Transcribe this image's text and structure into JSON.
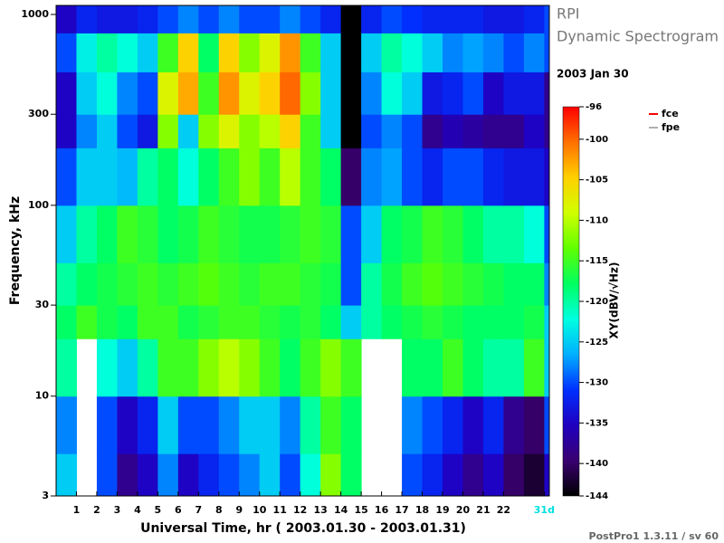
{
  "chart_data": {
    "type": "heatmap",
    "title": "RPI",
    "subtitle": "Dynamic Spectrogram",
    "date": "2003 Jan 30",
    "xlabel": "Universal Time, hr ( 2003.01.30 - 2003.01.31)",
    "ylabel": "Frequency, kHz",
    "colorbar_label": "XY(dBV/√Hz)",
    "footer": "PostPro1 1.3.11 / sv 60",
    "xlim": [
      0,
      24.25
    ],
    "ylim": [
      3,
      1115
    ],
    "log_y": true,
    "xticks": [
      1,
      2,
      3,
      4,
      5,
      6,
      7,
      8,
      9,
      10,
      11,
      12,
      13,
      14,
      15,
      16,
      17,
      18,
      19,
      20,
      21,
      22,
      {
        "value": 24,
        "label": "31d",
        "color": "#00e0e0"
      }
    ],
    "yticks": [
      3,
      10,
      30,
      100,
      300,
      1000
    ],
    "zlim": [
      -144,
      -96
    ],
    "zticks": [
      -96,
      -100,
      -105,
      -110,
      -115,
      -120,
      -125,
      -130,
      -135,
      -140,
      -144
    ],
    "colorscale": [
      "#000000",
      "#3a0070",
      "#2000c0",
      "#0030ff",
      "#00b0ff",
      "#00ffe0",
      "#00ff60",
      "#60ff00",
      "#d0ff00",
      "#ffd000",
      "#ff7000",
      "#ff0000"
    ],
    "series": [
      {
        "name": "fce",
        "color": "#ff0000"
      },
      {
        "name": "fpe",
        "color": "#b0b0b0"
      }
    ],
    "xbins": [
      0,
      1,
      2,
      3,
      4,
      5,
      6,
      7,
      8,
      9,
      10,
      11,
      12,
      13,
      14,
      15,
      16,
      17,
      18,
      19,
      20,
      21,
      22,
      23,
      24,
      24.25
    ],
    "ybins": [
      3,
      5,
      10,
      20,
      30,
      50,
      100,
      200,
      300,
      500,
      800,
      1115
    ],
    "values": [
      [
        -125,
        null,
        -130,
        -138,
        -135,
        -128,
        -135,
        -132,
        -130,
        -128,
        -125,
        -130,
        -122,
        -112,
        -118,
        null,
        null,
        -130,
        -132,
        -135,
        -138,
        -135,
        -140,
        -142,
        -135
      ],
      [
        -128,
        null,
        -130,
        -135,
        -132,
        -125,
        -130,
        -130,
        -128,
        -125,
        -125,
        -128,
        -120,
        -115,
        -118,
        null,
        null,
        -128,
        -130,
        -132,
        -135,
        -132,
        -138,
        -140,
        -130
      ],
      [
        -120,
        null,
        -122,
        -125,
        -120,
        -115,
        -115,
        -112,
        -110,
        -112,
        -115,
        -118,
        -115,
        -112,
        -115,
        null,
        null,
        -118,
        -118,
        -115,
        -118,
        -120,
        -120,
        -115,
        -125
      ],
      [
        -118,
        -115,
        -117,
        -118,
        -115,
        -115,
        -117,
        -116,
        -115,
        -115,
        -116,
        -117,
        -116,
        -118,
        -125,
        -120,
        -118,
        -117,
        -116,
        -117,
        -118,
        -118,
        -118,
        -117,
        -125
      ],
      [
        -120,
        -118,
        -117,
        -116,
        -115,
        -116,
        -115,
        -114,
        -115,
        -116,
        -115,
        -115,
        -116,
        -117,
        -130,
        -120,
        -117,
        -115,
        -114,
        -115,
        -116,
        -117,
        -118,
        -118,
        -128
      ],
      [
        -125,
        -120,
        -118,
        -115,
        -116,
        -118,
        -117,
        -115,
        -116,
        -117,
        -117,
        -116,
        -115,
        -116,
        -130,
        -125,
        -118,
        -117,
        -115,
        -116,
        -118,
        -120,
        -120,
        -122,
        -130
      ],
      [
        -130,
        -125,
        -125,
        -126,
        -120,
        -118,
        -122,
        -118,
        -115,
        -112,
        -115,
        -110,
        -115,
        -118,
        -140,
        -128,
        -127,
        -130,
        -132,
        -130,
        -130,
        -132,
        -133,
        -133,
        -135
      ],
      [
        -135,
        -128,
        -125,
        -130,
        -133,
        -112,
        -125,
        -112,
        -108,
        -112,
        -110,
        -105,
        -115,
        -125,
        -144,
        -130,
        -128,
        -130,
        -138,
        -136,
        -137,
        -138,
        -138,
        -135,
        -138
      ],
      [
        -135,
        -125,
        -122,
        -128,
        -130,
        -108,
        -103,
        -115,
        -102,
        -108,
        -105,
        -100,
        -112,
        -125,
        -144,
        -128,
        -122,
        -125,
        -133,
        -132,
        -130,
        -135,
        -133,
        -133,
        -138
      ],
      [
        -130,
        -123,
        -120,
        -122,
        -125,
        -115,
        -105,
        -118,
        -105,
        -112,
        -108,
        -102,
        -115,
        -125,
        -144,
        -125,
        -120,
        -122,
        -125,
        -128,
        -127,
        -128,
        -130,
        -128,
        -130
      ],
      [
        -135,
        -132,
        -133,
        -133,
        -132,
        -130,
        -128,
        -130,
        -128,
        -130,
        -130,
        -128,
        -130,
        -132,
        -144,
        -132,
        -130,
        -131,
        -132,
        -132,
        -132,
        -133,
        -133,
        -132,
        -130
      ]
    ]
  }
}
